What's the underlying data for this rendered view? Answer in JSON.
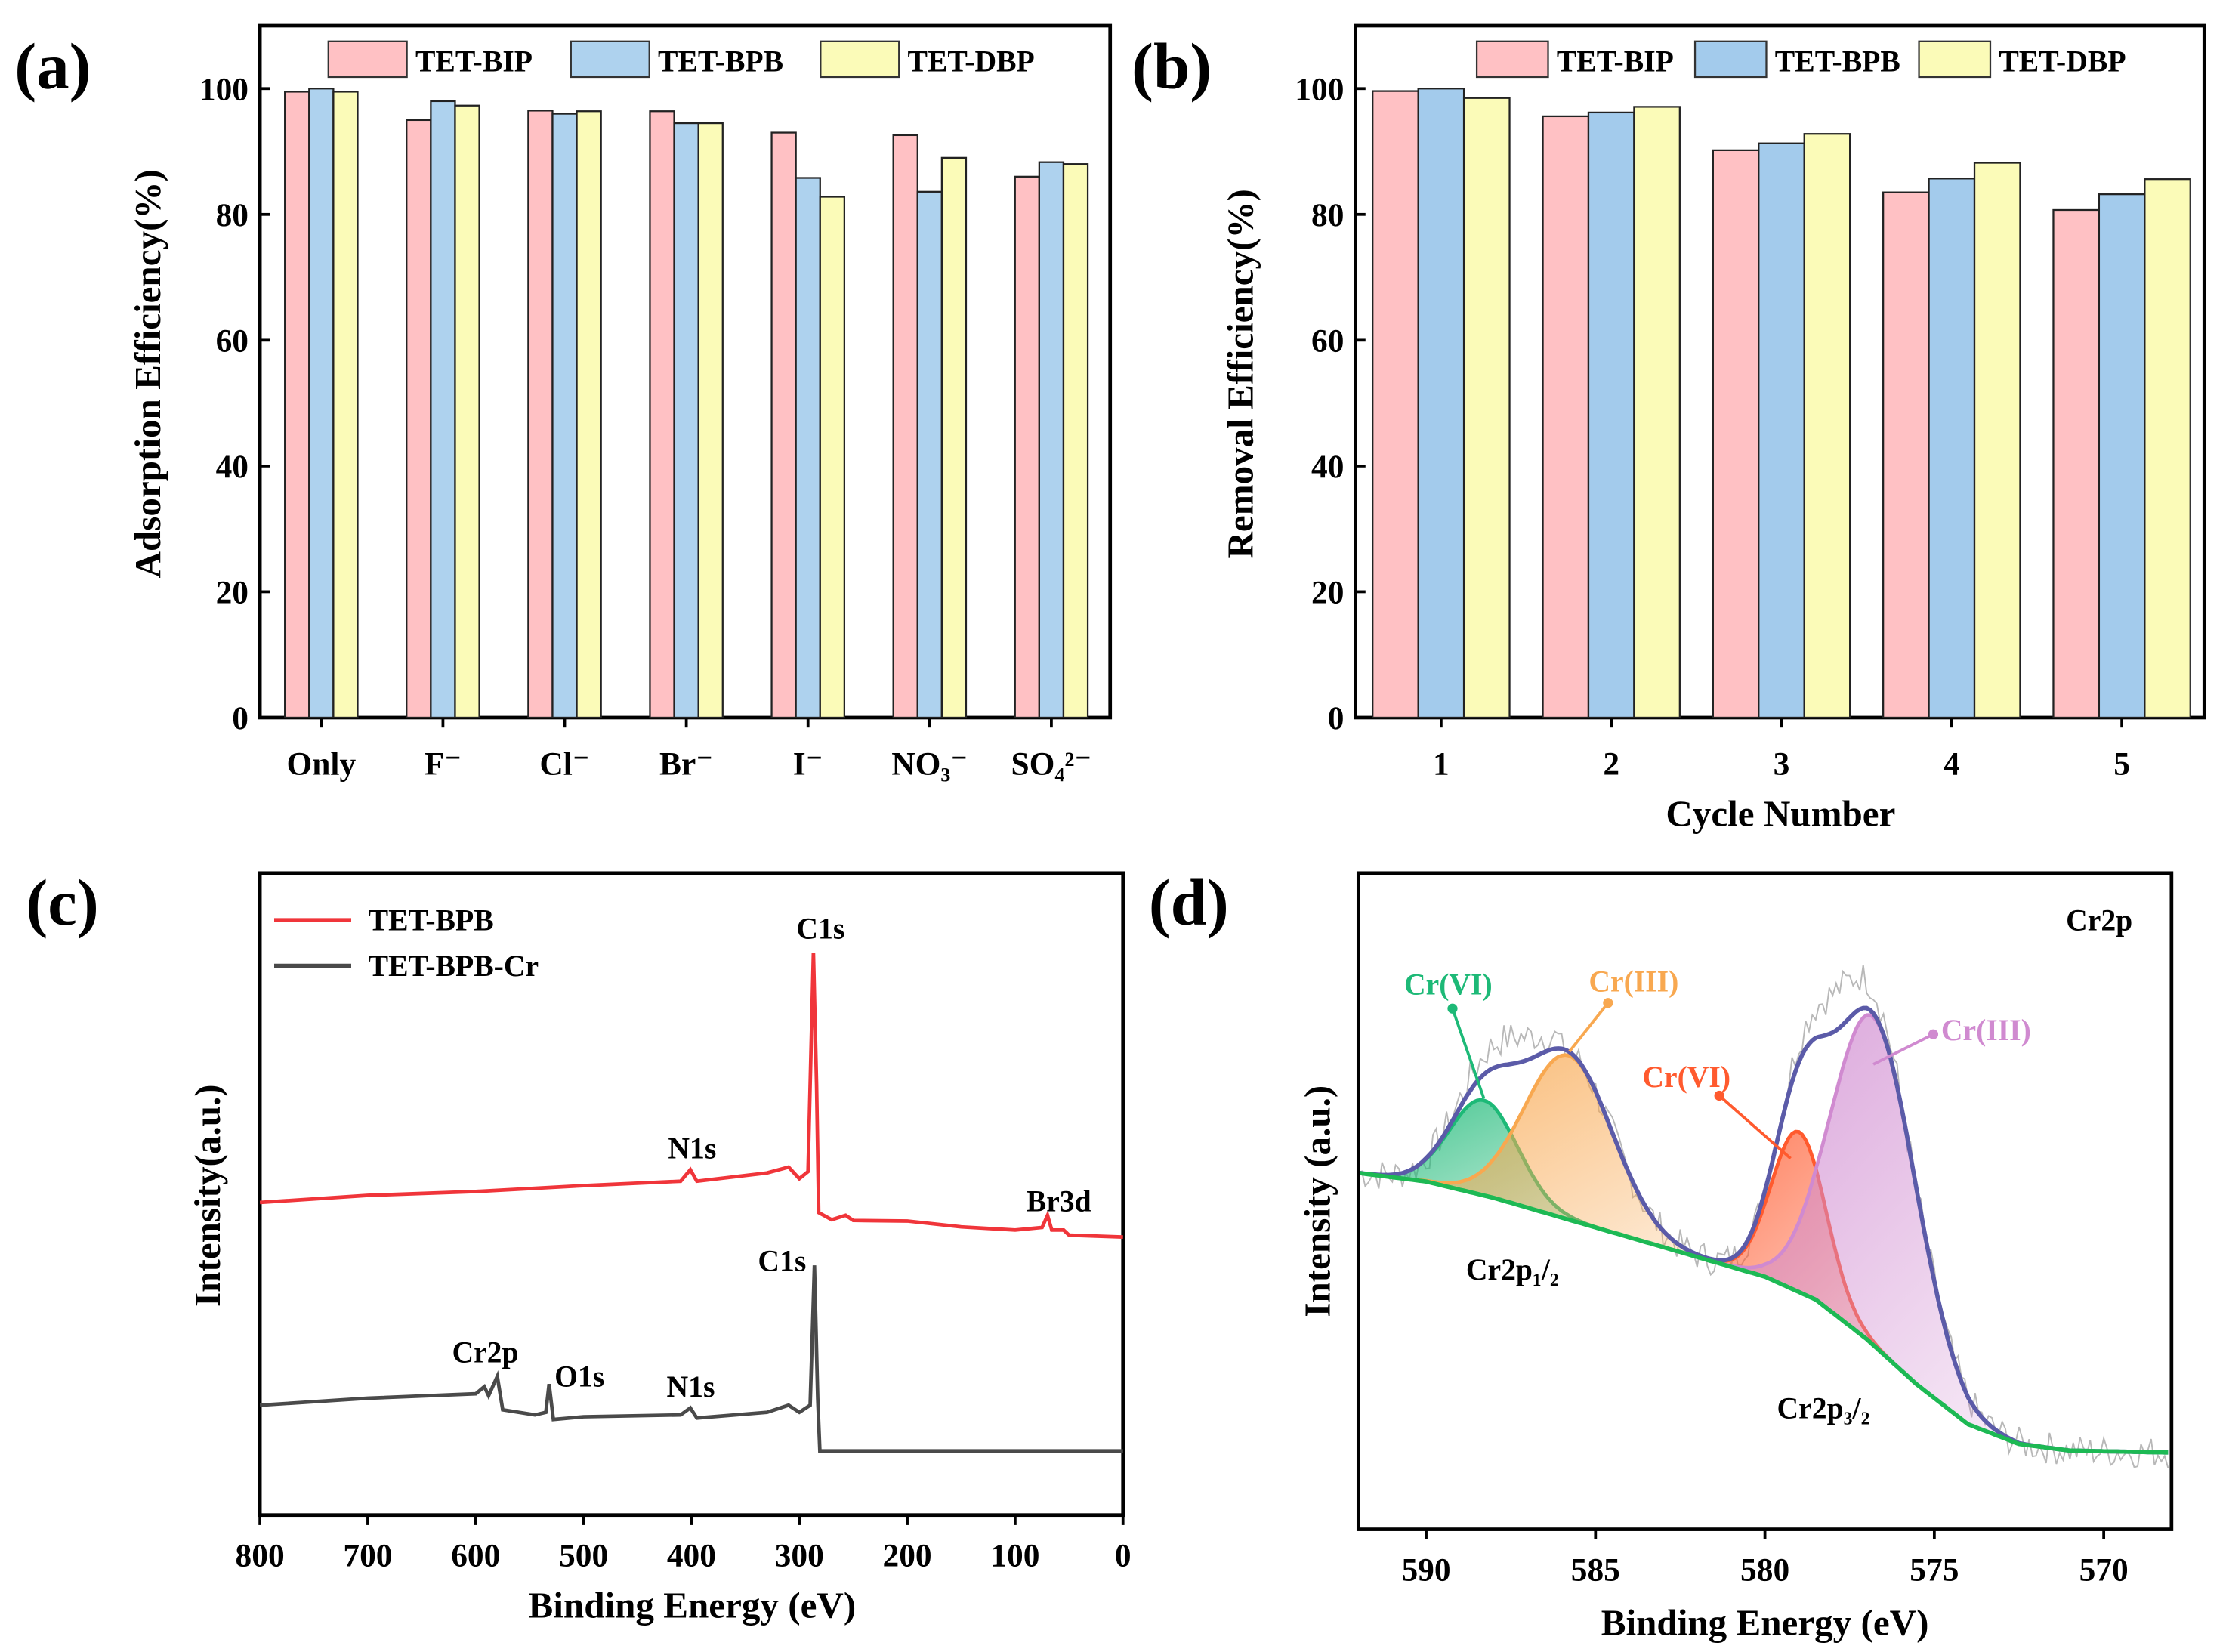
{
  "chart_data": [
    {
      "panel": "(a)",
      "type": "bar",
      "categories": [
        "Only",
        "F⁻",
        "Cl⁻",
        "Br⁻",
        "I⁻",
        "NO₃⁻",
        "SO₄²⁻"
      ],
      "series": [
        {
          "name": "TET-BIP",
          "color": "#ffc1c4",
          "values": [
            99.5,
            95.0,
            96.5,
            96.4,
            93.0,
            92.6,
            86.0
          ]
        },
        {
          "name": "TET-BPB",
          "color": "#aed2ee",
          "values": [
            100.0,
            98.0,
            96.0,
            94.5,
            85.8,
            83.6,
            88.3
          ]
        },
        {
          "name": "TET-DBP",
          "color": "#fbfbb8",
          "values": [
            99.5,
            97.3,
            96.4,
            94.5,
            82.8,
            89.0,
            88.0
          ]
        }
      ],
      "xlabel": "",
      "ylabel": "Adsorption Efficiency(%)",
      "ylim": [
        0,
        110
      ],
      "yticks": [
        0,
        20,
        40,
        60,
        80,
        100
      ],
      "legend": "top"
    },
    {
      "panel": "(b)",
      "type": "bar",
      "categories": [
        "1",
        "2",
        "3",
        "4",
        "5"
      ],
      "series": [
        {
          "name": "TET-BIP",
          "color": "#ffc1c4",
          "values": [
            99.6,
            95.6,
            90.2,
            83.5,
            80.7
          ]
        },
        {
          "name": "TET-BPB",
          "color": "#a3cbec",
          "values": [
            100.0,
            96.2,
            91.3,
            85.7,
            83.2
          ]
        },
        {
          "name": "TET-DBP",
          "color": "#fbfbb8",
          "values": [
            98.5,
            97.1,
            92.8,
            88.2,
            85.6
          ]
        }
      ],
      "xlabel": "Cycle Number",
      "ylabel": "Removal Efficiency(%)",
      "ylim": [
        0,
        110
      ],
      "yticks": [
        0,
        20,
        40,
        60,
        80,
        100
      ],
      "legend": "top"
    },
    {
      "panel": "(c)",
      "type": "line",
      "xlabel": "Binding Energy (eV)",
      "ylabel": "Intensity(a.u.)",
      "xlim": [
        800,
        0
      ],
      "ylim": [
        0,
        100
      ],
      "xticks": [
        800,
        700,
        600,
        500,
        400,
        300,
        200,
        100,
        0
      ],
      "legend": "top-left",
      "series": [
        {
          "name": "TET-BPB",
          "color": "#f0353a",
          "points": [
            [
              800,
              48.7
            ],
            [
              700,
              49.8
            ],
            [
              600,
              50.4
            ],
            [
              500,
              51.3
            ],
            [
              410,
              52.0
            ],
            [
              401,
              53.8
            ],
            [
              395,
              52.0
            ],
            [
              330,
              53.3
            ],
            [
              310,
              54.2
            ],
            [
              300,
              52.4
            ],
            [
              292,
              53.5
            ],
            [
              287,
              87.6
            ],
            [
              284,
              67
            ],
            [
              282,
              47.1
            ],
            [
              270,
              46.0
            ],
            [
              257,
              46.7
            ],
            [
              250,
              45.9
            ],
            [
              200,
              45.8
            ],
            [
              150,
              44.9
            ],
            [
              100,
              44.4
            ],
            [
              75,
              44.8
            ],
            [
              70,
              46.7
            ],
            [
              66,
              44.4
            ],
            [
              55,
              44.4
            ],
            [
              50,
              43.6
            ],
            [
              0,
              43.3
            ]
          ]
        },
        {
          "name": "TET-BPB-Cr",
          "color": "#4a4a4a",
          "points": [
            [
              800,
              17.1
            ],
            [
              700,
              18.2
            ],
            [
              600,
              18.9
            ],
            [
              592,
              20.0
            ],
            [
              588,
              18.6
            ],
            [
              580,
              21.6
            ],
            [
              575,
              16.4
            ],
            [
              545,
              15.6
            ],
            [
              535,
              16.0
            ],
            [
              532,
              20.4
            ],
            [
              528,
              14.9
            ],
            [
              500,
              15.3
            ],
            [
              410,
              15.6
            ],
            [
              401,
              16.7
            ],
            [
              395,
              15.1
            ],
            [
              330,
              16.0
            ],
            [
              310,
              17.1
            ],
            [
              300,
              16.0
            ],
            [
              290,
              17.1
            ],
            [
              286,
              38.9
            ],
            [
              283,
              18.2
            ],
            [
              281,
              10.0
            ],
            [
              0,
              10.0
            ]
          ]
        }
      ],
      "annotations": [
        {
          "text": "C1s",
          "x": 285,
          "series": "TET-BPB"
        },
        {
          "text": "N1s",
          "x": 400,
          "series": "TET-BPB"
        },
        {
          "text": "Br3d",
          "x": 70,
          "series": "TET-BPB"
        },
        {
          "text": "C1s",
          "x": 285,
          "series": "TET-BPB-Cr"
        },
        {
          "text": "Cr2p",
          "x": 580,
          "series": "TET-BPB-Cr"
        },
        {
          "text": "O1s",
          "x": 532,
          "series": "TET-BPB-Cr"
        },
        {
          "text": "N1s",
          "x": 400,
          "series": "TET-BPB-Cr"
        }
      ]
    },
    {
      "panel": "(d)",
      "type": "line",
      "title": "Cr2p",
      "xlabel": "Binding Energy (eV)",
      "ylabel": "Intensity (a.u.)",
      "xlim": [
        592,
        568
      ],
      "ylim": [
        0,
        100
      ],
      "xticks": [
        590,
        585,
        580,
        575,
        570
      ],
      "background": {
        "color": "#1db954",
        "points": [
          [
            592,
            54.3
          ],
          [
            590,
            53
          ],
          [
            588,
            50.5
          ],
          [
            586,
            47.5
          ],
          [
            584,
            44.5
          ],
          [
            582,
            41.5
          ],
          [
            580,
            38.5
          ],
          [
            578.5,
            35
          ],
          [
            577,
            29
          ],
          [
            575.5,
            22
          ],
          [
            574,
            16
          ],
          [
            572.5,
            13
          ],
          [
            571,
            12
          ],
          [
            568,
            11.7
          ]
        ]
      },
      "envelope_color": "#5b5ba8",
      "raw_color": "#b8b8b8",
      "components": [
        {
          "label": "Cr(VI)",
          "center": 588.3,
          "height": 14.5,
          "sigma": 1.0,
          "color": "#1db977"
        },
        {
          "label": "Cr(III)",
          "center": 585.8,
          "height": 25,
          "sigma": 1.3,
          "color": "#f8a850"
        },
        {
          "label": "Cr(VI)",
          "center": 579.0,
          "height": 24.4,
          "sigma": 0.8,
          "color": "#ff5a2e"
        },
        {
          "label": "Cr(III)",
          "center": 576.8,
          "height": 50,
          "sigma": 1.25,
          "color": "#d08ad0"
        }
      ],
      "annotations": [
        "Cr2p₁/₂",
        "Cr2p₃/₂"
      ]
    }
  ],
  "panels": {
    "a": "(a)",
    "b": "(b)",
    "c": "(c)",
    "d": "(d)"
  }
}
